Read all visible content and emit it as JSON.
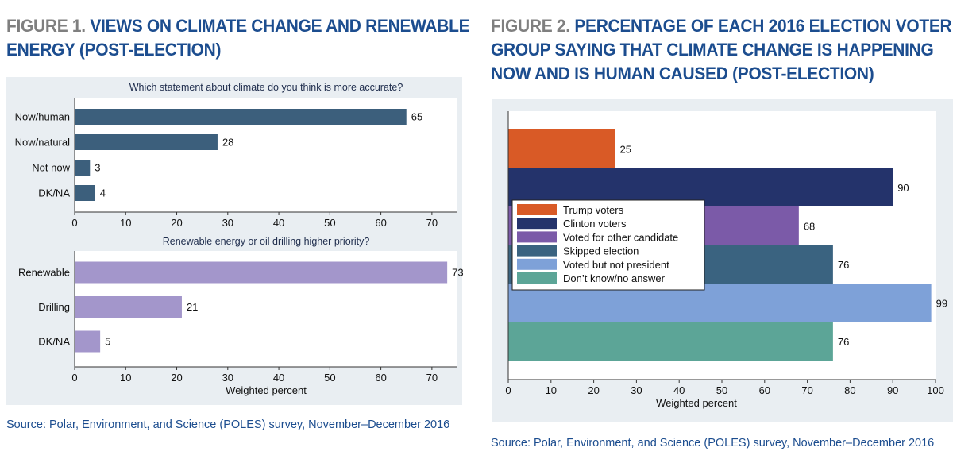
{
  "figures": [
    {
      "number": "FIGURE 1.",
      "title_lines": [
        "VIEWS ON CLIMATE CHANGE AND RENEWABLE",
        "ENERGY (POST-ELECTION)"
      ],
      "source": "Source: Polar, Environment, and Science (POLES) survey, November–December 2016"
    },
    {
      "number": "FIGURE 2.",
      "title_lines": [
        "PERCENTAGE OF EACH 2016 ELECTION VOTER",
        "GROUP SAYING THAT CLIMATE CHANGE IS HAPPENING",
        "NOW AND IS HUMAN CAUSED (POST-ELECTION)"
      ],
      "source": "Source: Polar, Environment, and Science (POLES) survey, November–December 2016"
    }
  ],
  "colors": {
    "title": "#1c4d8f",
    "figure_number": "#7f7f7f",
    "panel_bg": "#e9eef2",
    "plot_bg": "#ffffff",
    "climate_bar": "#3c5f7c",
    "renewable_bar": "#a396cb"
  },
  "chart_data": [
    {
      "type": "bar",
      "orientation": "horizontal",
      "title": "Which statement about climate do you think is more accurate?",
      "categories": [
        "Now/human",
        "Now/natural",
        "Not now",
        "DK/NA"
      ],
      "values": [
        65,
        28,
        3,
        4
      ],
      "xlabel": "",
      "xlim": [
        0,
        75
      ],
      "xticks": [
        0,
        10,
        20,
        30,
        40,
        50,
        60,
        70
      ],
      "grid": false,
      "color": "#3c5f7c"
    },
    {
      "type": "bar",
      "orientation": "horizontal",
      "title": "Renewable energy or oil drilling higher priority?",
      "categories": [
        "Renewable",
        "Drilling",
        "DK/NA"
      ],
      "values": [
        73,
        21,
        5
      ],
      "xlabel": "Weighted percent",
      "xlim": [
        0,
        75
      ],
      "xticks": [
        0,
        10,
        20,
        30,
        40,
        50,
        60,
        70
      ],
      "grid": false,
      "color": "#a396cb"
    },
    {
      "type": "bar",
      "orientation": "horizontal",
      "title": "",
      "series": [
        {
          "name": "Trump voters",
          "value": 25,
          "color": "#d95a26"
        },
        {
          "name": "Clinton voters",
          "value": 90,
          "color": "#24336b"
        },
        {
          "name": "Voted for other candidate",
          "value": 68,
          "color": "#7b5aa8"
        },
        {
          "name": "Skipped election",
          "value": 76,
          "color": "#3a6380"
        },
        {
          "name": "Voted but not president",
          "value": 99,
          "color": "#7ea1d8"
        },
        {
          "name": "Don’t know/no answer",
          "value": 76,
          "color": "#5ca597"
        }
      ],
      "xlabel": "Weighted percent",
      "xlim": [
        0,
        100
      ],
      "xticks": [
        0,
        10,
        20,
        30,
        40,
        50,
        60,
        70,
        80,
        90,
        100
      ],
      "grid": false,
      "legend_position": "inside-left"
    }
  ]
}
